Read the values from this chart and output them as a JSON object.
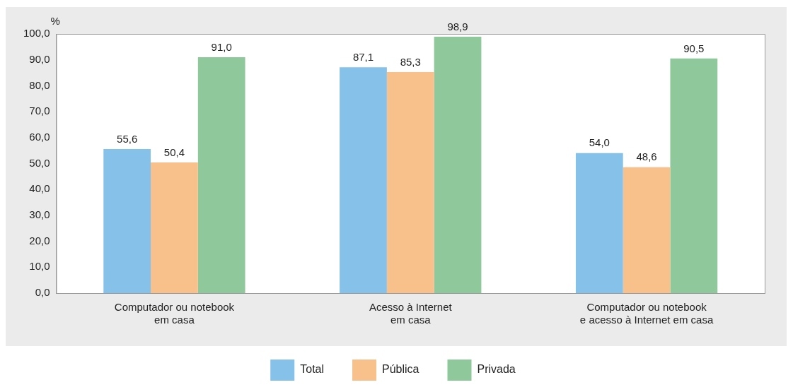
{
  "chart_data": {
    "type": "bar",
    "ylabel": "%",
    "categories": [
      "Computador ou notebook\nem casa",
      "Acesso à Internet\nem casa",
      "Computador ou notebook\ne acesso à Internet em casa"
    ],
    "series": [
      {
        "name": "Total",
        "color": "#85c1e9",
        "values": [
          55.6,
          87.1,
          54.0
        ],
        "value_labels": [
          "55,6",
          "87,1",
          "54,0"
        ]
      },
      {
        "name": "Pública",
        "color": "#f8c08a",
        "values": [
          50.4,
          85.3,
          48.6
        ],
        "value_labels": [
          "50,4",
          "85,3",
          "48,6"
        ]
      },
      {
        "name": "Privada",
        "color": "#8fc89a",
        "values": [
          91.0,
          98.9,
          90.5
        ],
        "value_labels": [
          "91,0",
          "98,9",
          "90,5"
        ]
      }
    ],
    "ylim": [
      0,
      100
    ],
    "yticks": [
      {
        "value": 0,
        "label": "0,0"
      },
      {
        "value": 10,
        "label": "10,0"
      },
      {
        "value": 20,
        "label": "20,0"
      },
      {
        "value": 30,
        "label": "30,0"
      },
      {
        "value": 40,
        "label": "40,0"
      },
      {
        "value": 50,
        "label": "50,0"
      },
      {
        "value": 60,
        "label": "60,0"
      },
      {
        "value": 70,
        "label": "70,0"
      },
      {
        "value": 80,
        "label": "80,0"
      },
      {
        "value": 90,
        "label": "90,0"
      },
      {
        "value": 100,
        "label": "100,0"
      }
    ],
    "grid": false,
    "legend": "bottom"
  }
}
